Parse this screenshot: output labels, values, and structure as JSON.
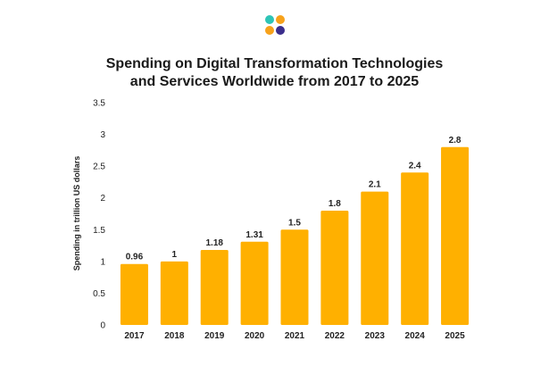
{
  "logo": {
    "icon": "four-dot-logo-icon",
    "colors": [
      "#2ec4b6",
      "#f7a21b",
      "#f7a21b",
      "#3b2e8c"
    ]
  },
  "bar_color": "#ffb000",
  "chart_data": {
    "type": "bar",
    "title_lines": [
      "Spending on Digital Transformation Technologies",
      "and Services Worldwide from 2017 to 2025"
    ],
    "categories": [
      "2017",
      "2018",
      "2019",
      "2020",
      "2021",
      "2022",
      "2023",
      "2024",
      "2025"
    ],
    "values": [
      0.96,
      1,
      1.18,
      1.31,
      1.5,
      1.8,
      2.1,
      2.4,
      2.8
    ],
    "data_labels": [
      "0.96",
      "1",
      "1.18",
      "1.31",
      "1.5",
      "1.8",
      "2.1",
      "2.4",
      "2.8"
    ],
    "xlabel": "",
    "ylabel": "Spending in trillion US dollars",
    "ylim": [
      0,
      3.5
    ],
    "yticks": [
      0,
      0.5,
      1,
      1.5,
      2,
      2.5,
      3,
      3.5
    ],
    "ytick_labels": [
      "0",
      "0.5",
      "1",
      "1.5",
      "2",
      "2.5",
      "3",
      "3.5"
    ],
    "grid": false,
    "legend": "none"
  }
}
